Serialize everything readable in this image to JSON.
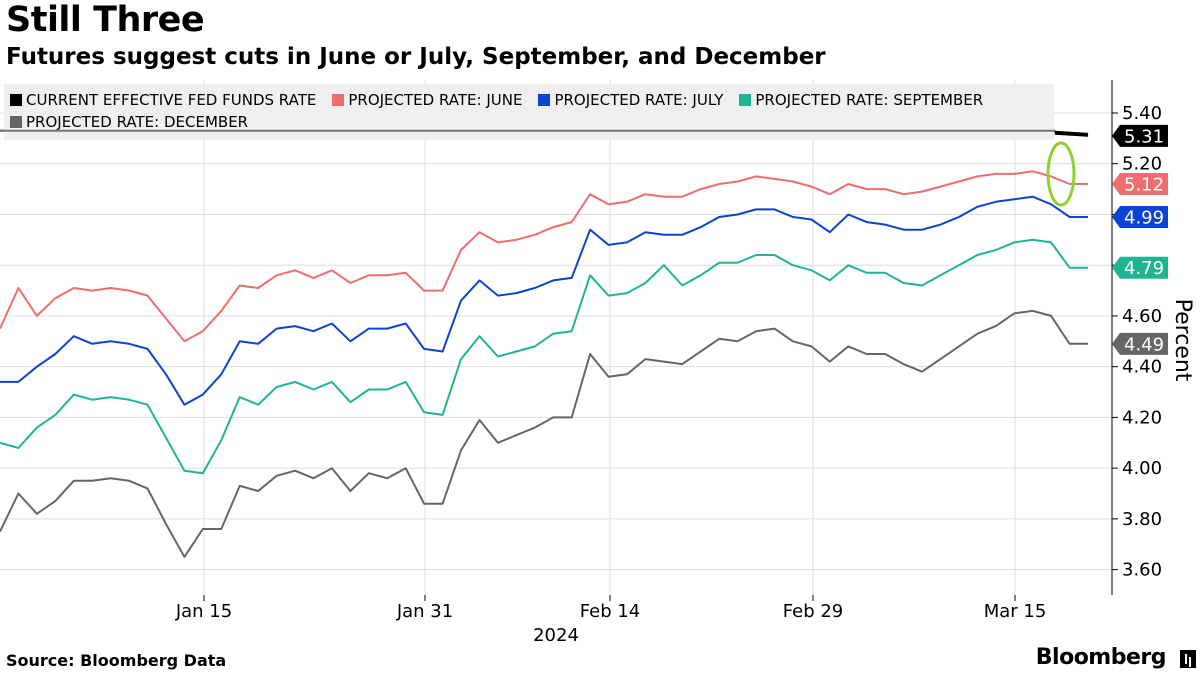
{
  "header": {
    "title": "Still Three",
    "subtitle": "Futures suggest cuts in June or July, September, and December"
  },
  "footer": {
    "source": "Source: Bloomberg Data",
    "brand": "Bloomberg"
  },
  "colors": {
    "effective": "#000000",
    "june": "#f06d6d",
    "july": "#0c44d2",
    "september": "#1fb593",
    "december": "#666666",
    "gridline": "#dddddd",
    "annotation_circle": "#8ed12c",
    "legend_bg": "#efefef"
  },
  "chart_data": {
    "type": "line",
    "xlabel": "2024",
    "ylabel": "Percent",
    "ylim": [
      3.5,
      5.5
    ],
    "yticks": [
      "5.40",
      "5.20",
      "5.00",
      "4.80",
      "4.60",
      "4.40",
      "4.20",
      "4.00",
      "3.80",
      "3.60"
    ],
    "xticks": [
      "Jan 15",
      "Jan 31",
      "Feb 14",
      "Feb 29",
      "Mar 15"
    ],
    "legend_position": "top",
    "grid": true,
    "annotations": [
      "circle highlighting latest drop"
    ],
    "series": [
      {
        "name": "CURRENT EFFECTIVE FED FUNDS RATE",
        "key": "effective",
        "last_label": "5.31",
        "values": [
          5.33,
          5.33,
          5.33,
          5.33,
          5.33,
          5.33,
          5.33,
          5.33,
          5.33,
          5.33,
          5.33,
          5.33,
          5.33,
          5.33,
          5.33,
          5.33,
          5.33,
          5.33,
          5.33,
          5.33,
          5.33,
          5.33,
          5.33,
          5.33,
          5.33,
          5.33,
          5.33,
          5.33,
          5.33,
          5.33,
          5.33,
          5.33,
          5.33,
          5.33,
          5.33,
          5.33,
          5.33,
          5.33,
          5.33,
          5.33,
          5.33,
          5.33,
          5.33,
          5.33,
          5.33,
          5.33,
          5.33,
          5.33,
          5.33,
          5.33,
          5.33,
          5.33,
          5.33,
          5.32,
          5.31
        ]
      },
      {
        "name": "PROJECTED RATE: JUNE",
        "key": "june",
        "last_label": "5.12",
        "values": [
          4.55,
          4.71,
          4.6,
          4.67,
          4.71,
          4.7,
          4.71,
          4.7,
          4.68,
          4.59,
          4.5,
          4.54,
          4.62,
          4.72,
          4.71,
          4.76,
          4.78,
          4.75,
          4.78,
          4.73,
          4.76,
          4.76,
          4.77,
          4.7,
          4.7,
          4.86,
          4.93,
          4.89,
          4.9,
          4.92,
          4.95,
          4.97,
          5.08,
          5.04,
          5.05,
          5.08,
          5.07,
          5.07,
          5.1,
          5.12,
          5.13,
          5.15,
          5.14,
          5.13,
          5.11,
          5.08,
          5.12,
          5.1,
          5.1,
          5.08,
          5.09,
          5.11,
          5.13,
          5.15,
          5.16,
          5.16,
          5.17,
          5.15,
          5.12,
          5.12
        ]
      },
      {
        "name": "PROJECTED RATE: JULY",
        "key": "july",
        "last_label": "4.99",
        "values": [
          4.34,
          4.34,
          4.4,
          4.45,
          4.52,
          4.49,
          4.5,
          4.49,
          4.47,
          4.37,
          4.25,
          4.29,
          4.37,
          4.5,
          4.49,
          4.55,
          4.56,
          4.54,
          4.57,
          4.5,
          4.55,
          4.55,
          4.57,
          4.47,
          4.46,
          4.66,
          4.74,
          4.68,
          4.69,
          4.71,
          4.74,
          4.75,
          4.94,
          4.88,
          4.89,
          4.93,
          4.92,
          4.92,
          4.95,
          4.99,
          5.0,
          5.02,
          5.02,
          4.99,
          4.98,
          4.93,
          5.0,
          4.97,
          4.96,
          4.94,
          4.94,
          4.96,
          4.99,
          5.03,
          5.05,
          5.06,
          5.07,
          5.04,
          4.99,
          4.99
        ]
      },
      {
        "name": "PROJECTED RATE: SEPTEMBER",
        "key": "september",
        "last_label": "4.79",
        "values": [
          4.1,
          4.08,
          4.16,
          4.21,
          4.29,
          4.27,
          4.28,
          4.27,
          4.25,
          4.12,
          3.99,
          3.98,
          4.11,
          4.28,
          4.25,
          4.32,
          4.34,
          4.31,
          4.34,
          4.26,
          4.31,
          4.31,
          4.34,
          4.22,
          4.21,
          4.43,
          4.52,
          4.44,
          4.46,
          4.48,
          4.53,
          4.54,
          4.76,
          4.68,
          4.69,
          4.73,
          4.8,
          4.72,
          4.76,
          4.81,
          4.81,
          4.84,
          4.84,
          4.8,
          4.78,
          4.74,
          4.8,
          4.77,
          4.77,
          4.73,
          4.72,
          4.76,
          4.8,
          4.84,
          4.86,
          4.89,
          4.9,
          4.89,
          4.79,
          4.79
        ]
      },
      {
        "name": "PROJECTED RATE: DECEMBER",
        "key": "december",
        "last_label": "4.49",
        "values": [
          3.75,
          3.9,
          3.82,
          3.87,
          3.95,
          3.95,
          3.96,
          3.95,
          3.92,
          3.78,
          3.65,
          3.76,
          3.76,
          3.93,
          3.91,
          3.97,
          3.99,
          3.96,
          4.0,
          3.91,
          3.98,
          3.96,
          4.0,
          3.86,
          3.86,
          4.07,
          4.19,
          4.1,
          4.13,
          4.16,
          4.2,
          4.2,
          4.45,
          4.36,
          4.37,
          4.43,
          4.42,
          4.41,
          4.46,
          4.51,
          4.5,
          4.54,
          4.55,
          4.5,
          4.48,
          4.42,
          4.48,
          4.45,
          4.45,
          4.41,
          4.38,
          4.43,
          4.48,
          4.53,
          4.56,
          4.61,
          4.62,
          4.6,
          4.49,
          4.49
        ]
      }
    ]
  }
}
